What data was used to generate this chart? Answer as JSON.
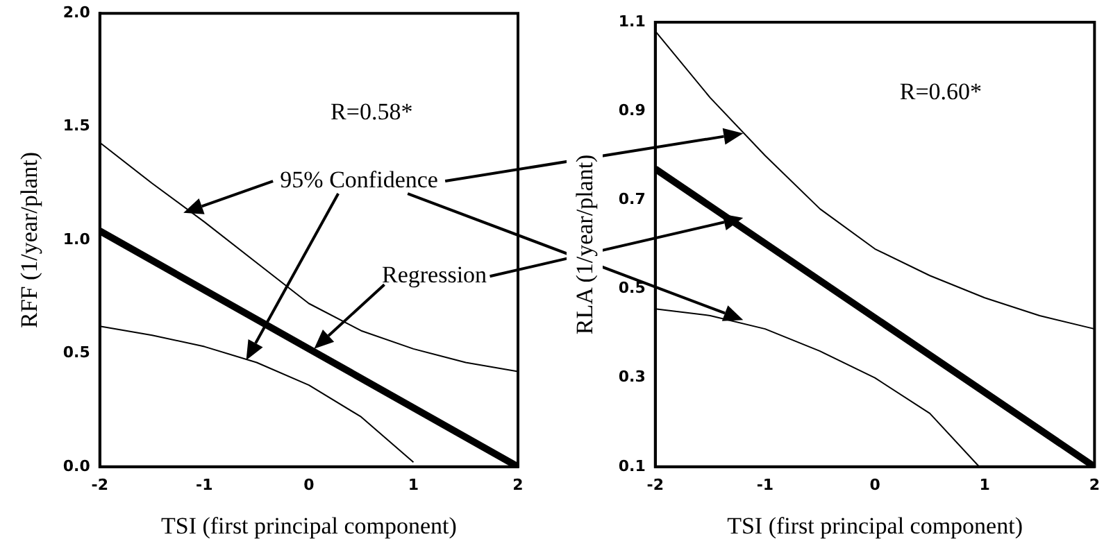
{
  "chart_data": [
    {
      "type": "line",
      "xlabel": "TSI (first principal component)",
      "ylabel": "RFF (1/year/plant)",
      "xlim": [
        -2,
        2
      ],
      "xticks": [
        -2,
        -1,
        0,
        1,
        2
      ],
      "ylim": [
        0,
        2
      ],
      "yticks": [
        {
          "value": 0,
          "label": "0.0"
        },
        0.5,
        {
          "value": 1,
          "label": "1.0"
        },
        1.5,
        {
          "value": 2,
          "label": "2.0"
        }
      ],
      "grid": false,
      "legend": false,
      "marker": "none",
      "line_style": "solid",
      "annotations": [
        "R=0.58*",
        "95% Confidence",
        "Regression"
      ],
      "series": [
        {
          "color": "#000000",
          "x": [
            -2,
            2
          ],
          "values": [
            1.04,
            0
          ]
        },
        {
          "color": "#000000",
          "x": [
            -2,
            -1.5,
            -1,
            -0.5,
            0,
            0.5,
            1,
            1.5,
            2
          ],
          "values": [
            1.43,
            1.25,
            1.08,
            0.9,
            0.72,
            0.6,
            0.52,
            0.46,
            0.42
          ]
        },
        {
          "color": "#000000",
          "x": [
            -2,
            -1.5,
            -1,
            -0.5,
            0,
            0.5,
            1
          ],
          "values": [
            0.62,
            0.58,
            0.53,
            0.46,
            0.36,
            0.22,
            0.02
          ]
        }
      ]
    },
    {
      "type": "line",
      "xlabel": "TSI (first principal component)",
      "ylabel": "RLA (1/year/plant)",
      "xlim": [
        -2,
        2
      ],
      "xticks": [
        -2,
        -1,
        0,
        1,
        2
      ],
      "ylim": [
        0.1,
        1.1
      ],
      "yticks": [
        0.1,
        0.3,
        0.5,
        0.7,
        0.9,
        1.1
      ],
      "grid": false,
      "legend": false,
      "marker": "none",
      "line_style": "solid",
      "annotations": [
        "R=0.60*"
      ],
      "series": [
        {
          "color": "#000000",
          "x": [
            -2,
            2
          ],
          "values": [
            0.77,
            0.1
          ]
        },
        {
          "color": "#000000",
          "x": [
            -2,
            -1.5,
            -1,
            -0.5,
            0,
            0.5,
            1,
            1.5,
            2
          ],
          "values": [
            1.08,
            0.93,
            0.8,
            0.68,
            0.59,
            0.53,
            0.48,
            0.44,
            0.41
          ]
        },
        {
          "color": "#000000",
          "x": [
            -2,
            -1.5,
            -1,
            -0.5,
            0,
            0.5,
            0.95
          ],
          "values": [
            0.455,
            0.44,
            0.41,
            0.36,
            0.3,
            0.22,
            0.1
          ]
        }
      ]
    }
  ]
}
